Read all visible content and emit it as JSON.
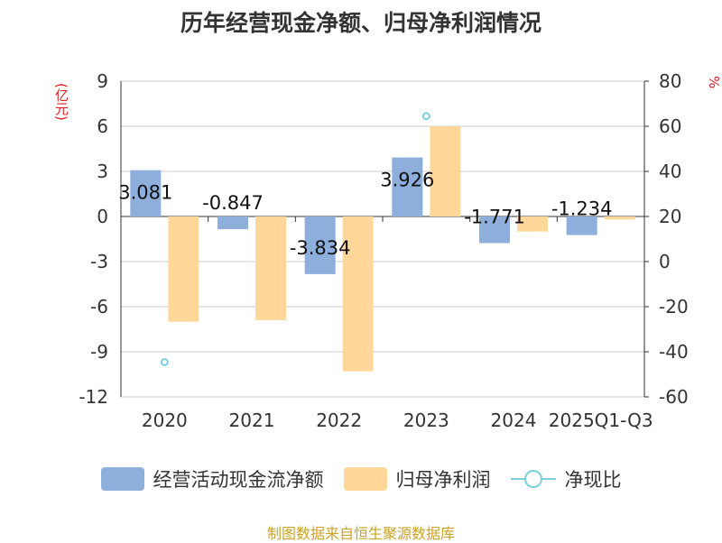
{
  "title": "历年经营现金净额、归母净利润情况",
  "units": {
    "left": "(亿元)",
    "right": "%"
  },
  "legend": {
    "cash_flow": "经营活动现金流净额",
    "net_profit": "归母净利润",
    "ratio": "净现比"
  },
  "source": "制图数据来自恒生聚源数据库",
  "colors": {
    "cash_flow": "#8eaedc",
    "net_profit": "#ffd899",
    "ratio": "#7ecfdd"
  },
  "chart_data": {
    "type": "bar",
    "categories": [
      "2020",
      "2021",
      "2022",
      "2023",
      "2024",
      "2025Q1-Q3"
    ],
    "series": [
      {
        "name": "经营活动现金流净额",
        "axis": "left",
        "values": [
          3.081,
          -0.847,
          -3.834,
          3.926,
          -1.771,
          -1.234
        ],
        "labels": [
          "3.081",
          "-0.847",
          "-3.834",
          "3.926",
          "-1.771",
          "-1.234"
        ]
      },
      {
        "name": "归母净利润",
        "axis": "left",
        "values": [
          -7.0,
          -6.9,
          -10.3,
          6.0,
          -1.0,
          -0.2
        ]
      },
      {
        "name": "净现比",
        "axis": "right",
        "type": "scatter",
        "values": [
          -44.6,
          null,
          null,
          64.5,
          null,
          null
        ]
      }
    ],
    "y_left": {
      "min": -12,
      "max": 9,
      "ticks": [
        "9",
        "6",
        "3",
        "0",
        "-3",
        "-6",
        "-9",
        "-12"
      ]
    },
    "y_right": {
      "min": -60,
      "max": 80,
      "ticks": [
        "80",
        "60",
        "40",
        "20",
        "0",
        "-20",
        "-40",
        "-60"
      ]
    },
    "grid": true,
    "legend_position": "bottom"
  }
}
